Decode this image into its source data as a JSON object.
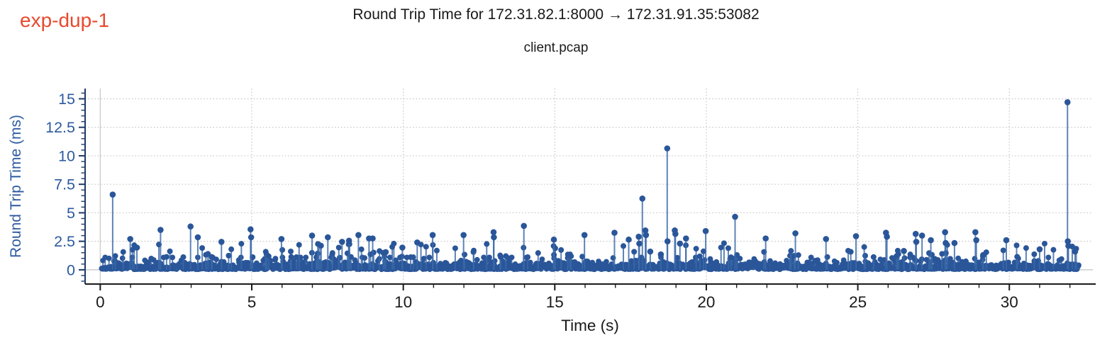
{
  "experiment_label": {
    "text": "exp-dup-1",
    "color": "#e8492e"
  },
  "chart_data": {
    "type": "stem-scatter",
    "title": "Round Trip Time for 172.31.82.1:8000 → 172.31.91.35:53082",
    "subtitle": "client.pcap",
    "xlabel": "Time (s)",
    "ylabel": "Round Trip Time (ms)",
    "xlim": [
      -0.5,
      32.85
    ],
    "ylim": [
      -1.25,
      15.9
    ],
    "x_major_ticks": [
      0,
      5,
      10,
      15,
      20,
      25,
      30
    ],
    "x_tick_labels": [
      "0",
      "5",
      "10",
      "15",
      "20",
      "25",
      "30"
    ],
    "x_minor_step": 1,
    "x_minor_range": [
      1,
      32
    ],
    "y_major_ticks": [
      0,
      2.5,
      5,
      7.5,
      10,
      12.5,
      15
    ],
    "y_tick_labels": [
      "0",
      "2.5",
      "5",
      "7.5",
      "10",
      "12.5",
      "15"
    ],
    "y_minor_step": 0.5,
    "y_minor_range": [
      -1,
      15.5
    ],
    "grid": {
      "shown": true,
      "major_style": "dotted",
      "zero_line_style": "solid",
      "color": "#c8c8c8",
      "zero_color": "#cdcdcd"
    },
    "legend": "none",
    "colors": {
      "marker": "#2a5699",
      "stem": "#3a69a8",
      "y_axis": "#1f3a66",
      "y_text": "#2c5aa0",
      "x_axis": "#1a1a1a",
      "x_text": "#1a1a1a",
      "title_text": "#1a1a1a"
    },
    "spikes": [
      [
        0.41,
        6.6
      ],
      [
        0.99,
        2.7
      ],
      [
        1.21,
        1.95
      ],
      [
        1.99,
        3.5
      ],
      [
        2.98,
        3.8
      ],
      [
        3.22,
        2.85
      ],
      [
        4.0,
        2.45
      ],
      [
        4.96,
        3.55
      ],
      [
        4.98,
        2.85
      ],
      [
        5.98,
        2.7
      ],
      [
        6.99,
        3.0
      ],
      [
        7.51,
        2.85
      ],
      [
        7.98,
        2.45
      ],
      [
        8.21,
        2.55
      ],
      [
        8.52,
        3.05
      ],
      [
        8.87,
        2.75
      ],
      [
        8.99,
        2.75
      ],
      [
        9.42,
        1.55
      ],
      [
        9.97,
        1.95
      ],
      [
        10.46,
        2.4
      ],
      [
        10.97,
        3.05
      ],
      [
        11.99,
        3.05
      ],
      [
        12.98,
        3.3
      ],
      [
        12.99,
        2.85
      ],
      [
        13.98,
        3.85
      ],
      [
        14.97,
        2.65
      ],
      [
        15.98,
        3.05
      ],
      [
        16.97,
        3.25
      ],
      [
        17.44,
        2.65
      ],
      [
        17.77,
        2.9
      ],
      [
        17.79,
        2.3
      ],
      [
        17.89,
        6.25
      ],
      [
        17.99,
        3.45
      ],
      [
        18.01,
        3.05
      ],
      [
        18.15,
        1.6
      ],
      [
        18.5,
        1.35
      ],
      [
        18.71,
        10.65
      ],
      [
        18.72,
        2.5
      ],
      [
        18.96,
        3.45
      ],
      [
        18.98,
        3.15
      ],
      [
        19.13,
        2.3
      ],
      [
        19.33,
        2.75
      ],
      [
        19.98,
        3.4
      ],
      [
        20.95,
        4.65
      ],
      [
        21.96,
        2.75
      ],
      [
        22.94,
        3.2
      ],
      [
        23.95,
        2.7
      ],
      [
        24.94,
        2.95
      ],
      [
        25.93,
        3.25
      ],
      [
        25.96,
        2.9
      ],
      [
        26.52,
        1.65
      ],
      [
        26.91,
        3.15
      ],
      [
        26.93,
        2.45
      ],
      [
        27.12,
        3.0
      ],
      [
        27.41,
        2.6
      ],
      [
        27.88,
        3.3
      ],
      [
        27.9,
        2.35
      ],
      [
        28.19,
        2.35
      ],
      [
        28.88,
        3.3
      ],
      [
        28.91,
        2.6
      ],
      [
        29.14,
        1.3
      ],
      [
        29.9,
        2.6
      ],
      [
        31.0,
        1.8
      ],
      [
        31.92,
        14.7
      ],
      [
        31.93,
        2.5
      ],
      [
        31.95,
        2.1
      ],
      [
        32.17,
        1.6
      ]
    ],
    "baseline_noise": {
      "description": "dense band of per-packet RTT samples, ~0.05–1.0 ms, covering 0–32.3 s",
      "count": 1800,
      "t_min": 0.04,
      "t_max": 32.3,
      "v_min": 0.04,
      "v_cap": 1.05,
      "lambda": 0.26,
      "seed": 20240707
    },
    "mid_noise": {
      "description": "frequent medium samples between ~1.1 and ~2.35 ms",
      "count": 115,
      "t_min": 0.1,
      "t_max": 32.25,
      "v_min": 1.1,
      "v_max": 2.35,
      "power": 1.5,
      "seed": 424242
    }
  }
}
